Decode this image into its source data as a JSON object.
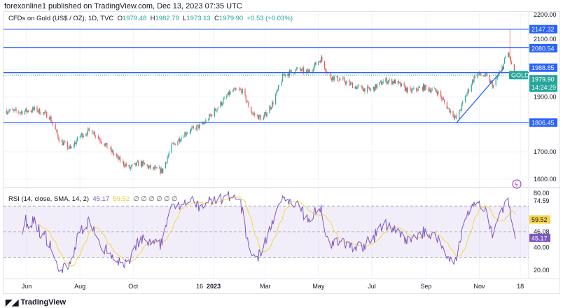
{
  "header": {
    "published": "forexonline1 published on TradingView.com, Dec 13, 2023 07:35 UTC"
  },
  "legend": {
    "symbol": "CFDs on Gold (US$ / OZ), 1D, TVC",
    "o_label": "O",
    "o": "1979.48",
    "h_label": "H",
    "h": "1982.79",
    "l_label": "L",
    "l": "1973.13",
    "c_label": "C",
    "c": "1979.90",
    "change": "+0.53 (+0.03%)"
  },
  "rsi_legend": {
    "label": "RSI (14, close, SMA, 14, 2)",
    "rsi": "45.17",
    "sma": "59.52",
    "extra": "∅ ∅ ∅ ∅ ∅ ∅"
  },
  "footer": {
    "brand": "TradingView"
  },
  "colors": {
    "up": "#26a69a",
    "down": "#ef5350",
    "level": "#2962ff",
    "rsi": "#7e57c2",
    "rsi_sma": "#f5d547"
  },
  "chart_data": [
    {
      "type": "candlestick",
      "title": "CFDs on Gold (US$ / OZ), 1D, TVC",
      "ylim": [
        1570,
        2220
      ],
      "price_ticks": [
        2200,
        2100,
        2000,
        1900,
        1800,
        1700,
        1600
      ],
      "price_tick_labels": [
        "2200.00",
        "2100.00",
        "1900.00",
        "1700.00",
        "1600.00"
      ],
      "x_tick_labels": [
        {
          "date": "2022-06-01",
          "label": "Jun"
        },
        {
          "date": "2022-08-01",
          "label": "Aug"
        },
        {
          "date": "2022-10-01",
          "label": "Oct"
        },
        {
          "date": "2022-12-16",
          "label": "16"
        },
        {
          "date": "2023-01-01",
          "label": "2023"
        },
        {
          "date": "2023-03-01",
          "label": "Mar"
        },
        {
          "date": "2023-05-01",
          "label": "May"
        },
        {
          "date": "2023-07-01",
          "label": "Jul"
        },
        {
          "date": "2023-09-01",
          "label": "Sep"
        },
        {
          "date": "2023-11-01",
          "label": "Nov"
        },
        {
          "date": "2023-12-18",
          "label": "18"
        }
      ],
      "approx_closes": [
        [
          "2022-05-09",
          1850
        ],
        [
          "2022-05-25",
          1845
        ],
        [
          "2022-06-11",
          1855
        ],
        [
          "2022-06-27",
          1830
        ],
        [
          "2022-07-09",
          1740
        ],
        [
          "2022-07-21",
          1710
        ],
        [
          "2022-08-02",
          1760
        ],
        [
          "2022-08-14",
          1780
        ],
        [
          "2022-08-30",
          1725
        ],
        [
          "2022-09-15",
          1670
        ],
        [
          "2022-09-27",
          1640
        ],
        [
          "2022-10-09",
          1660
        ],
        [
          "2022-10-21",
          1640
        ],
        [
          "2022-11-03",
          1630
        ],
        [
          "2022-11-14",
          1720
        ],
        [
          "2022-11-30",
          1770
        ],
        [
          "2022-12-20",
          1800
        ],
        [
          "2023-01-05",
          1860
        ],
        [
          "2023-01-21",
          1920
        ],
        [
          "2023-02-02",
          1925
        ],
        [
          "2023-02-14",
          1840
        ],
        [
          "2023-02-26",
          1820
        ],
        [
          "2023-03-10",
          1880
        ],
        [
          "2023-03-22",
          1980
        ],
        [
          "2023-04-07",
          2000
        ],
        [
          "2023-04-19",
          1990
        ],
        [
          "2023-05-04",
          2040
        ],
        [
          "2023-05-13",
          1975
        ],
        [
          "2023-05-29",
          1960
        ],
        [
          "2023-06-14",
          1935
        ],
        [
          "2023-06-30",
          1925
        ],
        [
          "2023-07-16",
          1960
        ],
        [
          "2023-07-28",
          1955
        ],
        [
          "2023-08-13",
          1920
        ],
        [
          "2023-08-29",
          1935
        ],
        [
          "2023-09-14",
          1920
        ],
        [
          "2023-09-26",
          1860
        ],
        [
          "2023-10-06",
          1820
        ],
        [
          "2023-10-16",
          1900
        ],
        [
          "2023-10-28",
          1985
        ],
        [
          "2023-11-09",
          1975
        ],
        [
          "2023-11-17",
          1940
        ],
        [
          "2023-11-29",
          2020
        ],
        [
          "2023-12-03",
          2070
        ],
        [
          "2023-12-11",
          1985
        ],
        [
          "2023-12-13",
          1979.9
        ]
      ],
      "levels": [
        {
          "value": 2147.32,
          "label": "2147.32"
        },
        {
          "value": 2080.54,
          "label": "2080.54"
        },
        {
          "value": 1988.85,
          "label": "1988.85"
        },
        {
          "value": 1806.45,
          "label": "1806.45"
        }
      ],
      "trendline": [
        [
          "2023-10-06",
          1806.45
        ],
        [
          "2023-11-29",
          2005
        ]
      ],
      "last": {
        "label": "GOLD",
        "price": "1979.90",
        "countdown": "14:24:29"
      }
    },
    {
      "type": "line",
      "title": "RSI (14, close, SMA, 14, 2)",
      "ylim": [
        15,
        82
      ],
      "bands": [
        70,
        50,
        30
      ],
      "axis_labels": [
        "80.00",
        "74.59",
        "46.08",
        "40.00",
        "20.00"
      ],
      "rsi_last": "45.17",
      "sma_last": "59.52"
    }
  ]
}
